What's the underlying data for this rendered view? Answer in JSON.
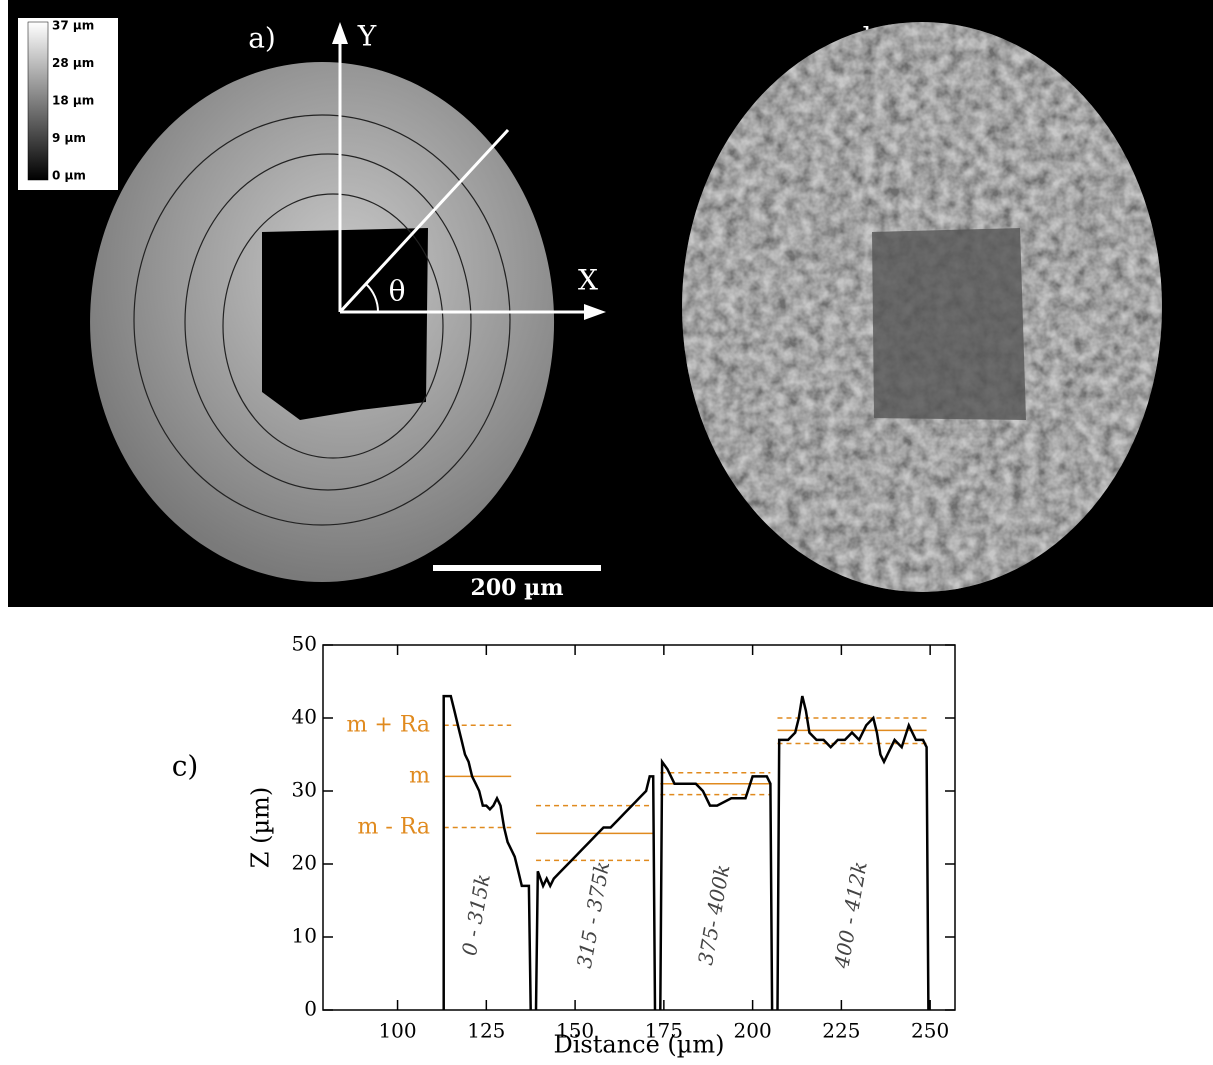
{
  "figure": {
    "panel_a": {
      "label": "a)",
      "colorbar_labels": [
        "37 µm",
        "28 µm",
        "18 µm",
        "9 µm",
        "0 µm"
      ],
      "y_axis": "Y",
      "x_axis": "X",
      "angle": "θ",
      "scale_bar": "200 µm"
    },
    "panel_b": {
      "label": "b)"
    },
    "panel_c": {
      "label": "c)"
    }
  },
  "chart_data": {
    "type": "line",
    "xlabel": "Distance (µm)",
    "ylabel": "Z (µm)",
    "xlim": [
      79,
      257
    ],
    "ylim": [
      0,
      50
    ],
    "xticks": [
      100,
      125,
      150,
      175,
      200,
      225,
      250
    ],
    "yticks": [
      0,
      10,
      20,
      30,
      40,
      50
    ],
    "series": [
      {
        "color": "#000000",
        "x": [
          113,
          113,
          115,
          116,
          117,
          118,
          119,
          120,
          121,
          122,
          123,
          124,
          125,
          126,
          127,
          128,
          129,
          130,
          131,
          132,
          133,
          134,
          135,
          136,
          137,
          137.5,
          null,
          139,
          139.5,
          141,
          142,
          143,
          144,
          146,
          148,
          150,
          152,
          154,
          156,
          158,
          160,
          162,
          164,
          166,
          168,
          170,
          171,
          172,
          172.5,
          null,
          174,
          174.5,
          176,
          178,
          182,
          184,
          186,
          188,
          190,
          194,
          198,
          200,
          202,
          204,
          205,
          205.5,
          null,
          207,
          207.5,
          210,
          212,
          213,
          214,
          215,
          216,
          218,
          220,
          222,
          224,
          226,
          228,
          230,
          232,
          234,
          235,
          236,
          237,
          238,
          240,
          242,
          244,
          246,
          248,
          249,
          249.5
        ],
        "values": [
          0,
          43,
          43,
          41,
          39,
          37,
          35,
          34,
          32,
          31,
          30,
          28,
          28,
          27.5,
          28,
          29,
          28,
          25,
          23,
          22,
          21,
          19,
          17,
          17,
          17,
          0,
          null,
          0,
          19,
          17,
          18,
          17,
          18,
          19,
          20,
          21,
          22,
          23,
          24,
          25,
          25,
          26,
          27,
          28,
          29,
          30,
          32,
          32,
          0,
          null,
          0,
          34,
          33,
          31,
          31,
          31,
          30,
          28,
          28,
          29,
          29,
          32,
          32,
          32,
          31,
          0,
          null,
          0,
          37,
          37,
          38,
          40,
          43,
          41,
          38,
          37,
          37,
          36,
          37,
          37,
          38,
          37,
          39,
          40,
          38,
          35,
          34,
          35,
          37,
          36,
          39,
          37,
          37,
          36,
          0
        ]
      }
    ],
    "ref_color": "#e08a1e",
    "ref_labels": [
      "m + Ra",
      "m",
      "m - Ra"
    ],
    "segments": [
      {
        "label": "0 - 315k",
        "x_start": 113,
        "x_end": 132,
        "mean": 32,
        "upper": 39,
        "lower": 25
      },
      {
        "label": "315 - 375k",
        "x_start": 139,
        "x_end": 172,
        "mean": 24.2,
        "upper": 28,
        "lower": 20.5
      },
      {
        "label": "375- 400k",
        "x_start": 174,
        "x_end": 205,
        "mean": 31,
        "upper": 32.5,
        "lower": 29.5
      },
      {
        "label": "400 - 412k",
        "x_start": 207,
        "x_end": 249,
        "mean": 38.3,
        "upper": 40,
        "lower": 36.5
      }
    ]
  }
}
